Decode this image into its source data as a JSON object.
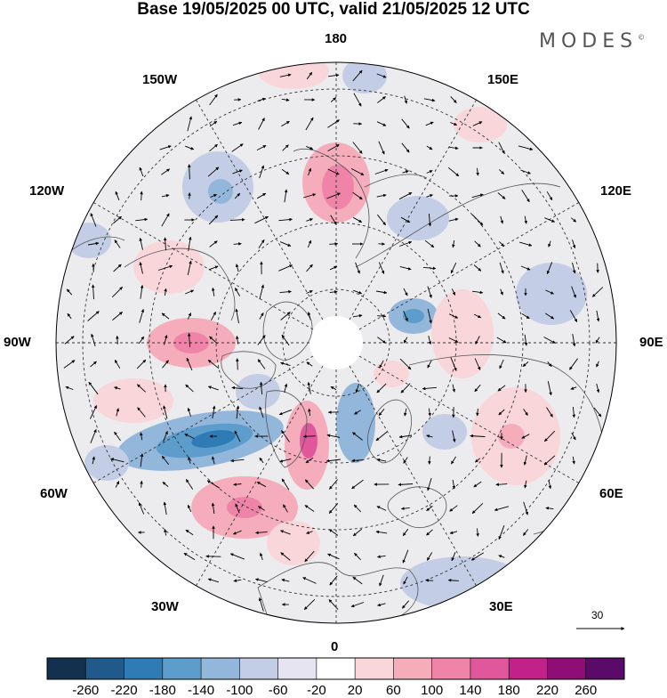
{
  "title": "Base 19/05/2025 00 UTC, valid 21/05/2025 12 UTC",
  "logo": "MODES",
  "logo_mark": "©",
  "longitude_labels": [
    "180",
    "150E",
    "120E",
    "90E",
    "60E",
    "30E",
    "0",
    "30W",
    "60W",
    "90W",
    "120W",
    "150W"
  ],
  "reference_vector": {
    "label": "30"
  },
  "colorbar": {
    "ticks": [
      "-260",
      "-220",
      "-180",
      "-140",
      "-100",
      "-60",
      "-20",
      "20",
      "60",
      "100",
      "140",
      "180",
      "220",
      "260"
    ],
    "colors": [
      "#14304f",
      "#1f5a8a",
      "#2f7bb5",
      "#5d9dcb",
      "#93b6db",
      "#c3cde6",
      "#e6e4f1",
      "#ffffff",
      "#f9d6d9",
      "#f5adbb",
      "#ef84a8",
      "#e1579c",
      "#c3218a",
      "#8e0e76",
      "#5a0a69"
    ]
  },
  "map": {
    "projection": "north-polar-stereographic",
    "graticule": "dashed"
  }
}
